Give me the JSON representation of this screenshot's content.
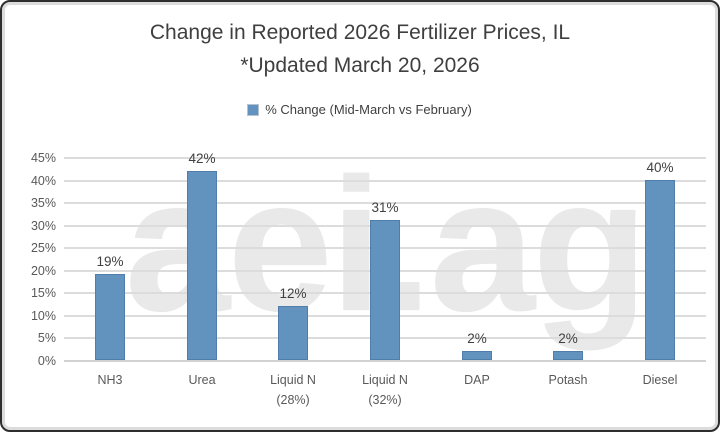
{
  "chart": {
    "title": "Change in Reported 2026 Fertilizer Prices, IL",
    "subtitle": "*Updated March 20, 2026",
    "legend_label": "% Change (Mid-March vs February)",
    "watermark": "aei.ag"
  },
  "chart_data": {
    "type": "bar",
    "title": "Change in Reported 2026 Fertilizer Prices, IL",
    "subtitle": "*Updated March 20, 2026",
    "legend": [
      "% Change (Mid-March vs February)"
    ],
    "legend_position": "top",
    "categories": [
      "NH3",
      "Urea",
      "Liquid N (28%)",
      "Liquid N (32%)",
      "DAP",
      "Potash",
      "Diesel"
    ],
    "category_lines": [
      [
        "NH3"
      ],
      [
        "Urea"
      ],
      [
        "Liquid N",
        "(28%)"
      ],
      [
        "Liquid N",
        "(32%)"
      ],
      [
        "DAP"
      ],
      [
        "Potash"
      ],
      [
        "Diesel"
      ]
    ],
    "values": [
      19,
      42,
      12,
      31,
      2,
      2,
      40
    ],
    "value_labels": [
      "19%",
      "42%",
      "12%",
      "31%",
      "2%",
      "2%",
      "40%"
    ],
    "xlabel": "",
    "ylabel": "",
    "ylim": [
      0,
      45
    ],
    "ytick_step": 5,
    "ytick_labels": [
      "0%",
      "5%",
      "10%",
      "15%",
      "20%",
      "25%",
      "30%",
      "35%",
      "40%",
      "45%"
    ],
    "grid": "horizontal",
    "watermark": "aei.ag",
    "colors": {
      "bar": "#6292be",
      "gridline": "#dcdcdc",
      "watermark": "#e9e9e9",
      "title_text": "#3f3f3f",
      "axis_text": "#595959",
      "value_label_text": "#404040"
    }
  }
}
